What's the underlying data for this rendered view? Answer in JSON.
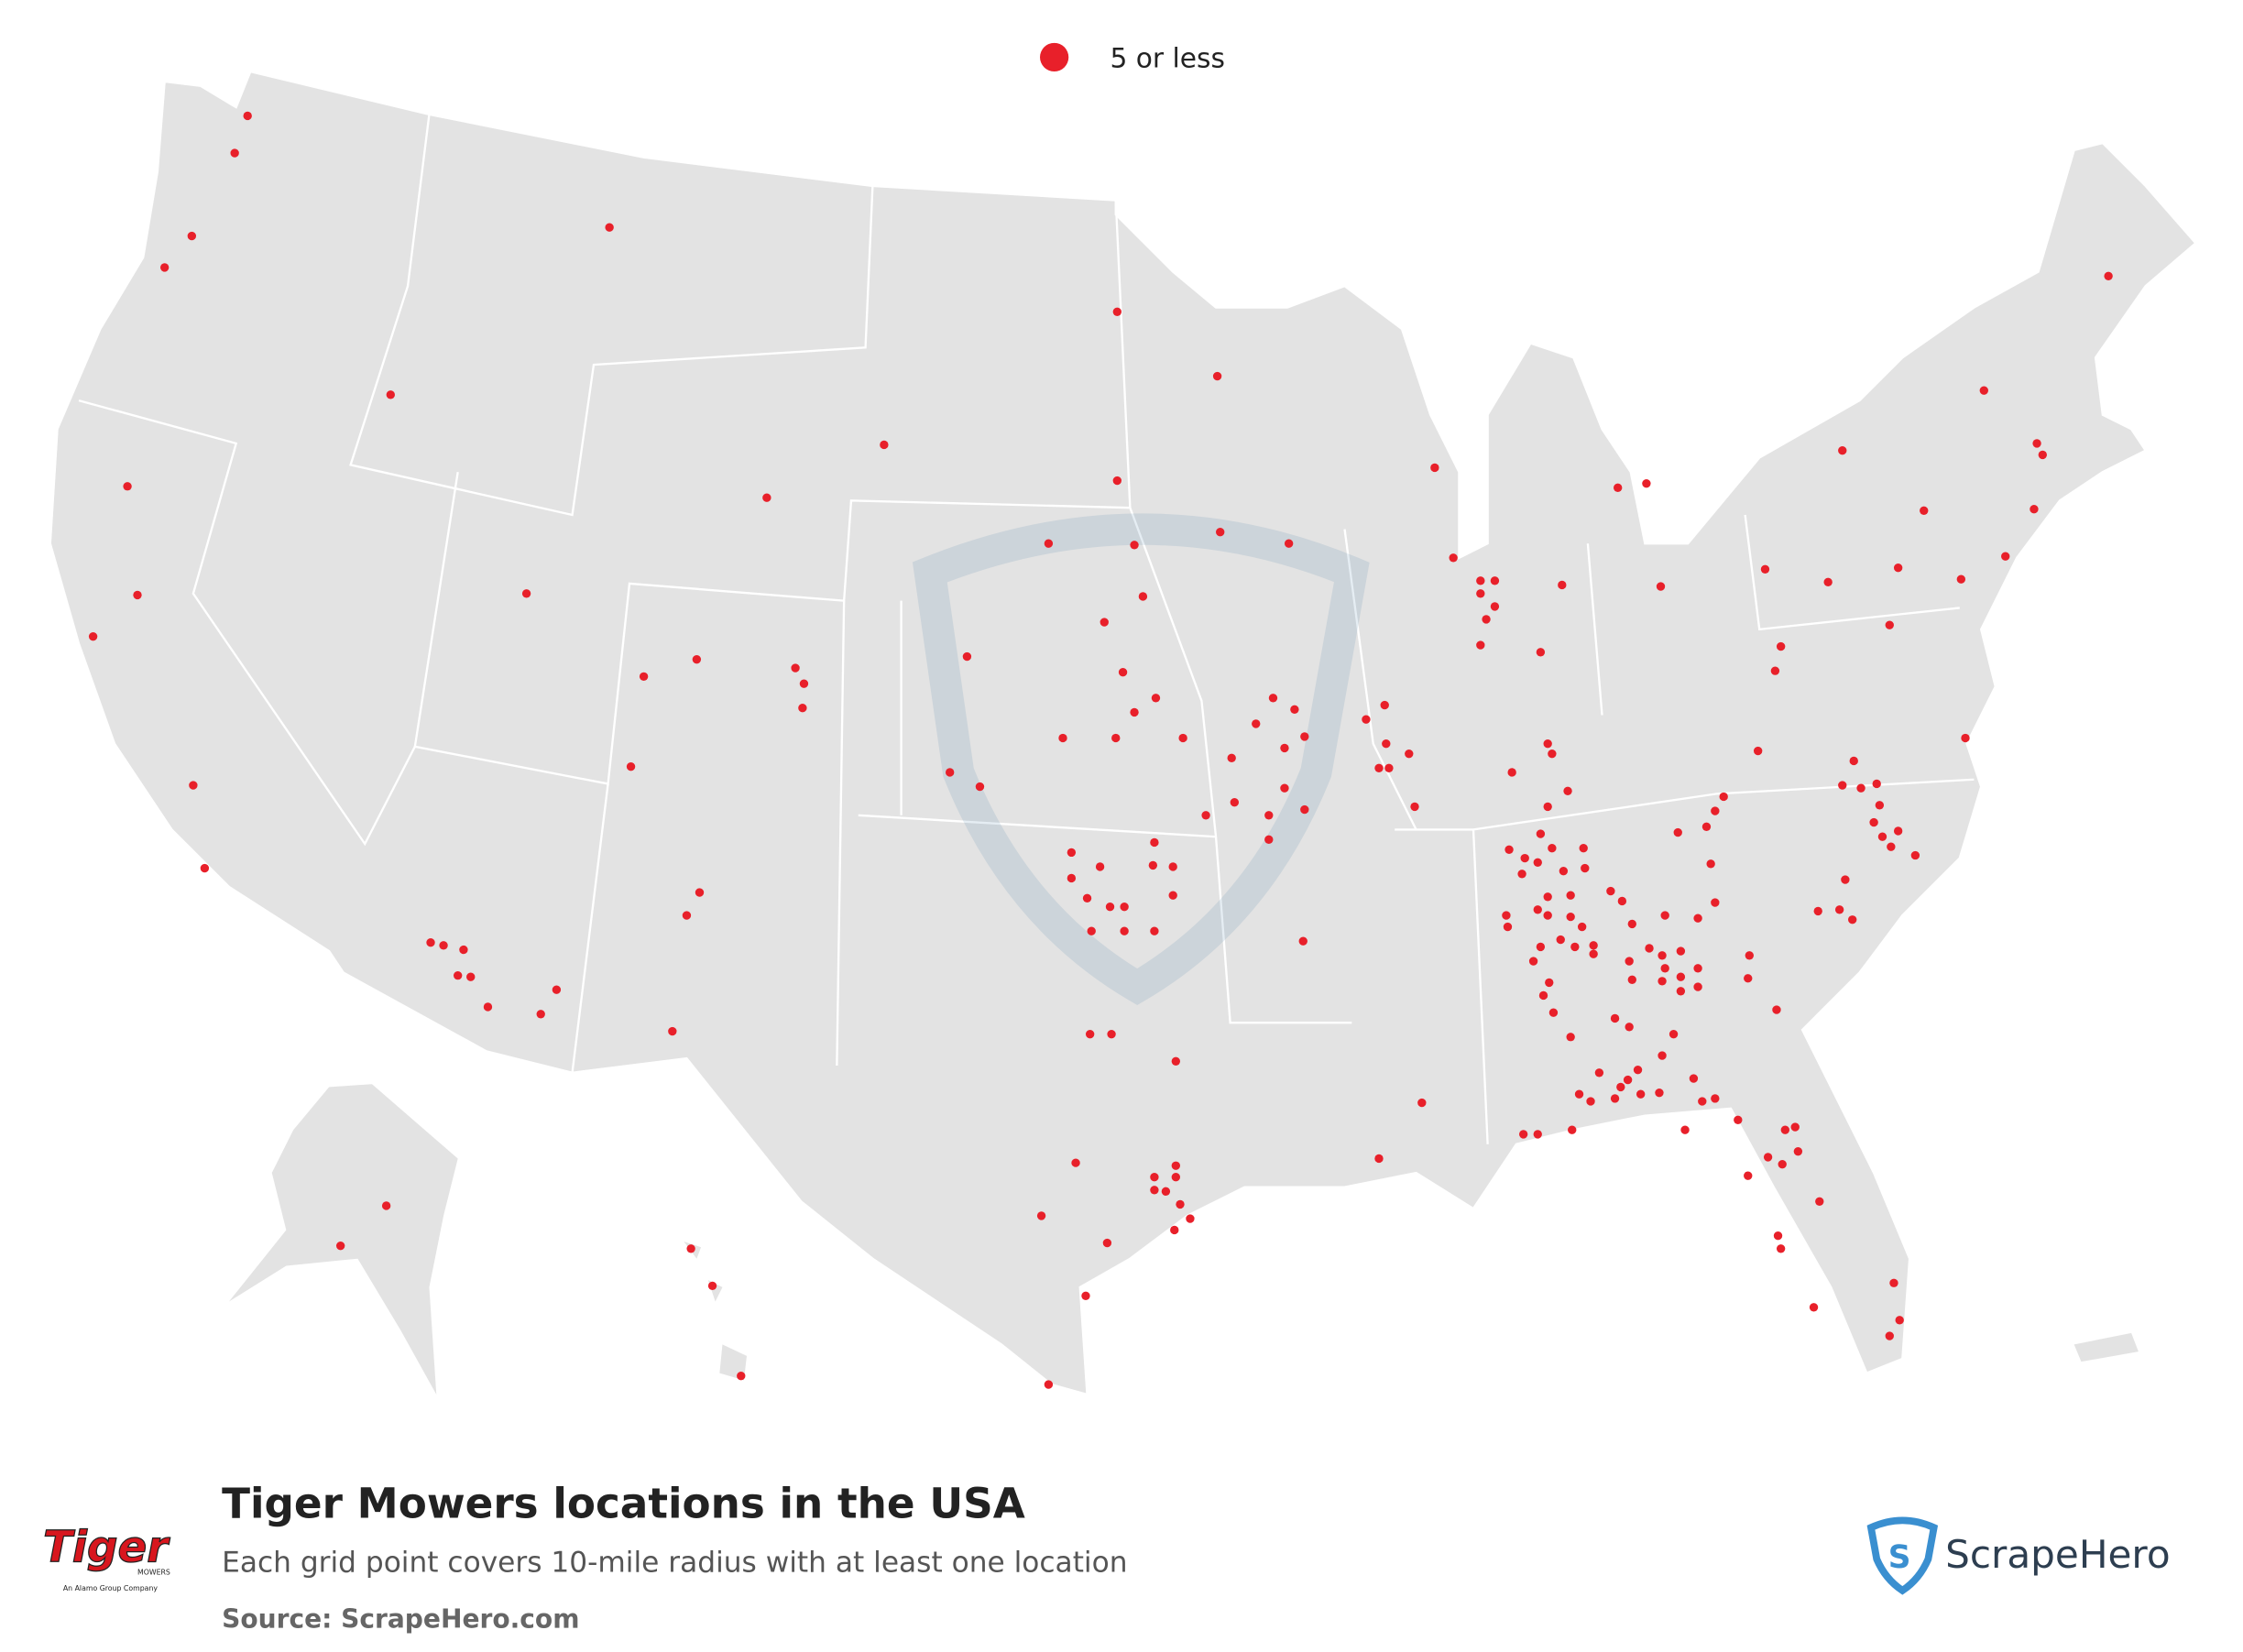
{
  "legend": {
    "label": "5 or less",
    "color": "#e8202a"
  },
  "title": "Tiger Mowers locations in the USA",
  "subtitle": "Each grid point covers 10-mile radius with at least one location",
  "source": "Source: ScrapeHero.com",
  "brand_logo": {
    "name": "Tiger",
    "sub": "MOWERS",
    "tagline": "An Alamo Group Company"
  },
  "provider": "ScrapeHero"
}
